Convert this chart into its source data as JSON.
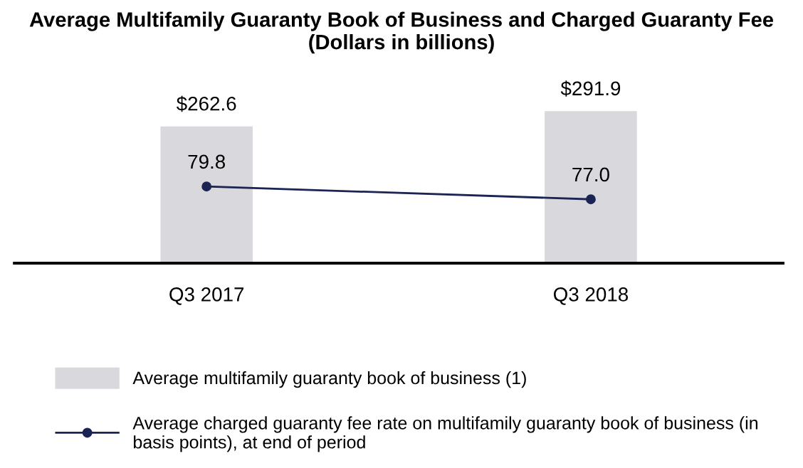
{
  "chart_data": {
    "type": "bar",
    "title": "Average Multifamily Guaranty Book of Business and Charged Guaranty Fee\n(Dollars in billions)",
    "categories": [
      "Q3 2017",
      "Q3 2018"
    ],
    "series": [
      {
        "name": "Average multifamily guaranty book of business (1)",
        "color": "#d9d8dd",
        "values": [
          262.6,
          291.9
        ],
        "value_labels": [
          "$262.6",
          "$291.9"
        ]
      },
      {
        "name": "Average charged guaranty fee rate on multifamily guaranty book of business (in basis points), at end of period",
        "type": "line",
        "axis": "y2",
        "color": "#1b2452",
        "marker": "circle",
        "values": [
          79.8,
          77.0
        ],
        "value_labels": [
          "79.8",
          "77.0"
        ]
      }
    ],
    "tick_labels": "x",
    "grid": false,
    "legend": "bottom"
  }
}
